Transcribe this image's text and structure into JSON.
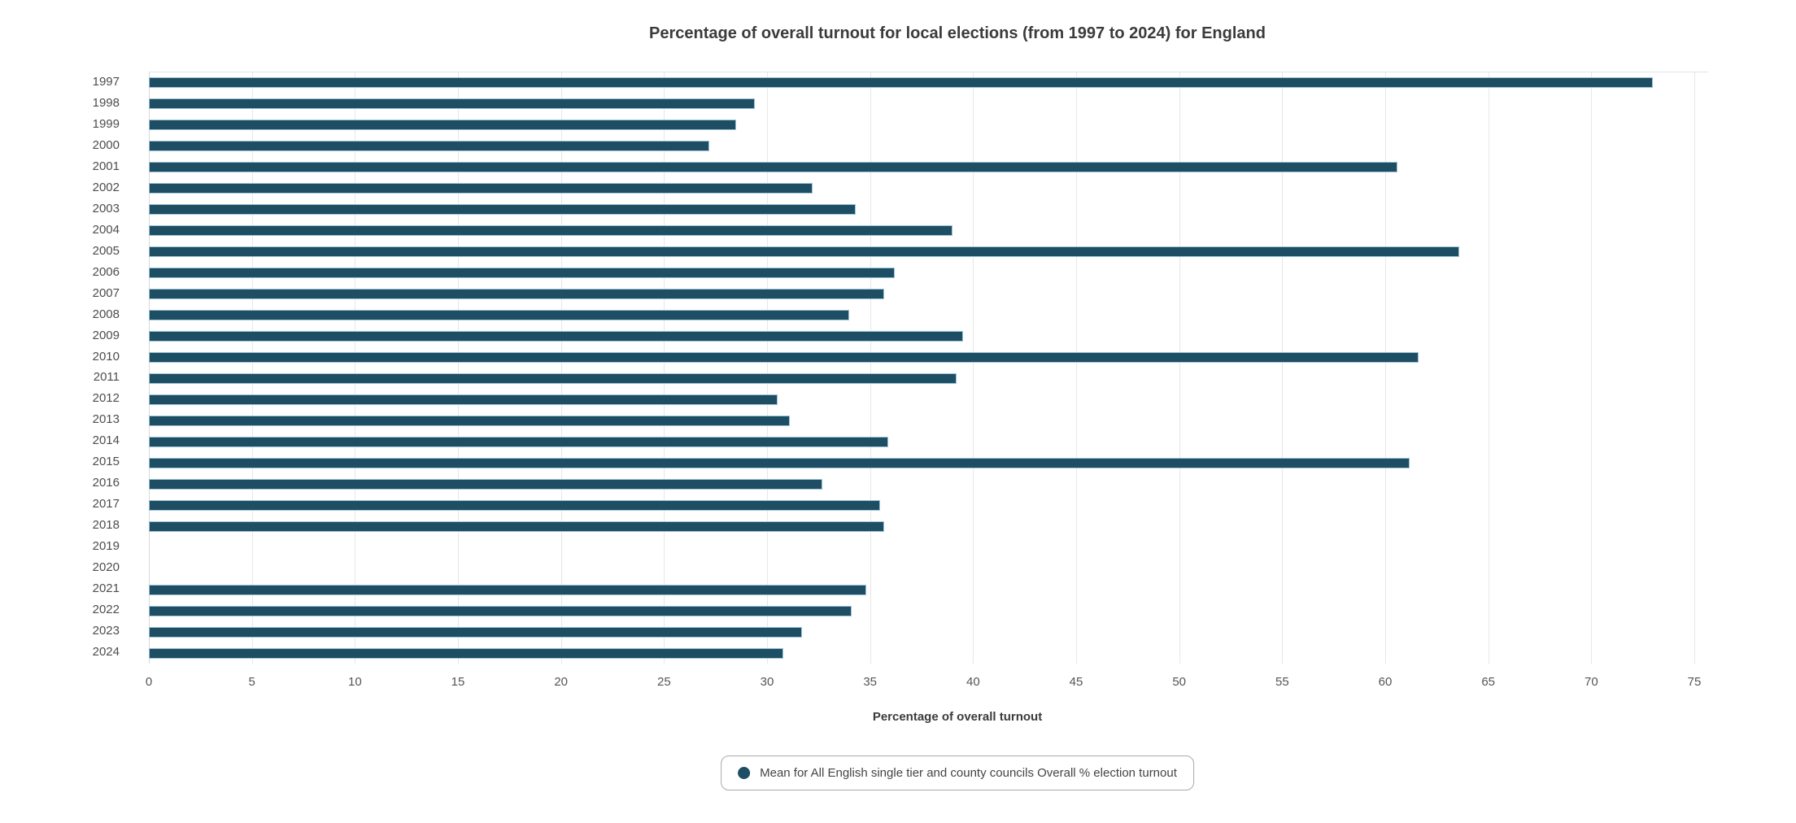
{
  "chart_data": {
    "type": "bar",
    "orientation": "horizontal",
    "title": "Percentage of overall turnout for local elections (from 1997 to 2024) for England",
    "xlabel": "Percentage of overall turnout",
    "ylabel": "",
    "categories": [
      "1997",
      "1998",
      "1999",
      "2000",
      "2001",
      "2002",
      "2003",
      "2004",
      "2005",
      "2006",
      "2007",
      "2008",
      "2009",
      "2010",
      "2011",
      "2012",
      "2013",
      "2014",
      "2015",
      "2016",
      "2017",
      "2018",
      "2019",
      "2020",
      "2021",
      "2022",
      "2023",
      "2024"
    ],
    "values": [
      73.0,
      29.4,
      28.5,
      27.2,
      60.6,
      32.2,
      34.3,
      39.0,
      63.6,
      36.2,
      35.7,
      34.0,
      39.5,
      61.6,
      39.2,
      30.5,
      31.1,
      35.9,
      61.2,
      32.7,
      35.5,
      35.7,
      null,
      null,
      34.8,
      34.1,
      31.7,
      30.8
    ],
    "xlim": [
      0,
      75
    ],
    "xticks": [
      0,
      5,
      10,
      15,
      20,
      25,
      30,
      35,
      40,
      45,
      50,
      55,
      60,
      65,
      70,
      75
    ],
    "grid": "vertical",
    "legend_position": "bottom",
    "legend": "Mean for All English single tier and county councils Overall % election turnout",
    "bar_color": "#1d4e63",
    "bar_border_color": "#9fc3d6",
    "gridline_color": "#e7e7e7"
  }
}
